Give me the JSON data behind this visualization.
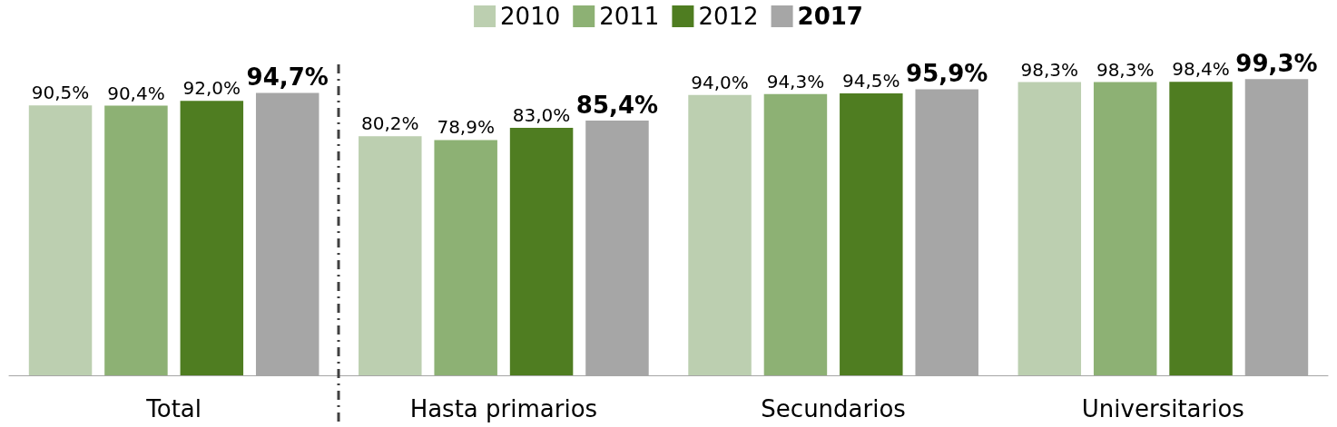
{
  "chart_data": {
    "type": "bar",
    "categories": [
      "Total",
      "Hasta primarios",
      "Secundarios",
      "Universitarios"
    ],
    "series": [
      {
        "name": "2010",
        "color": "#bccfb0",
        "values": [
          90.5,
          80.2,
          94.0,
          98.3
        ],
        "value_labels": [
          "90,5%",
          "80,2%",
          "94,0%",
          "98,3%"
        ]
      },
      {
        "name": "2011",
        "color": "#8db174",
        "values": [
          90.4,
          78.9,
          94.3,
          98.3
        ],
        "value_labels": [
          "90,4%",
          "78,9%",
          "94,3%",
          "98,3%"
        ]
      },
      {
        "name": "2012",
        "color": "#4f7d21",
        "values": [
          92.0,
          83.0,
          94.5,
          98.4
        ],
        "value_labels": [
          "92,0%",
          "83,0%",
          "94,5%",
          "98,4%"
        ]
      },
      {
        "name": "2017",
        "color": "#a6a6a6",
        "values": [
          94.7,
          85.4,
          95.9,
          99.3
        ],
        "value_labels": [
          "94,7%",
          "85,4%",
          "95,9%",
          "99,3%"
        ]
      }
    ],
    "legend": "top",
    "grid": false
  }
}
